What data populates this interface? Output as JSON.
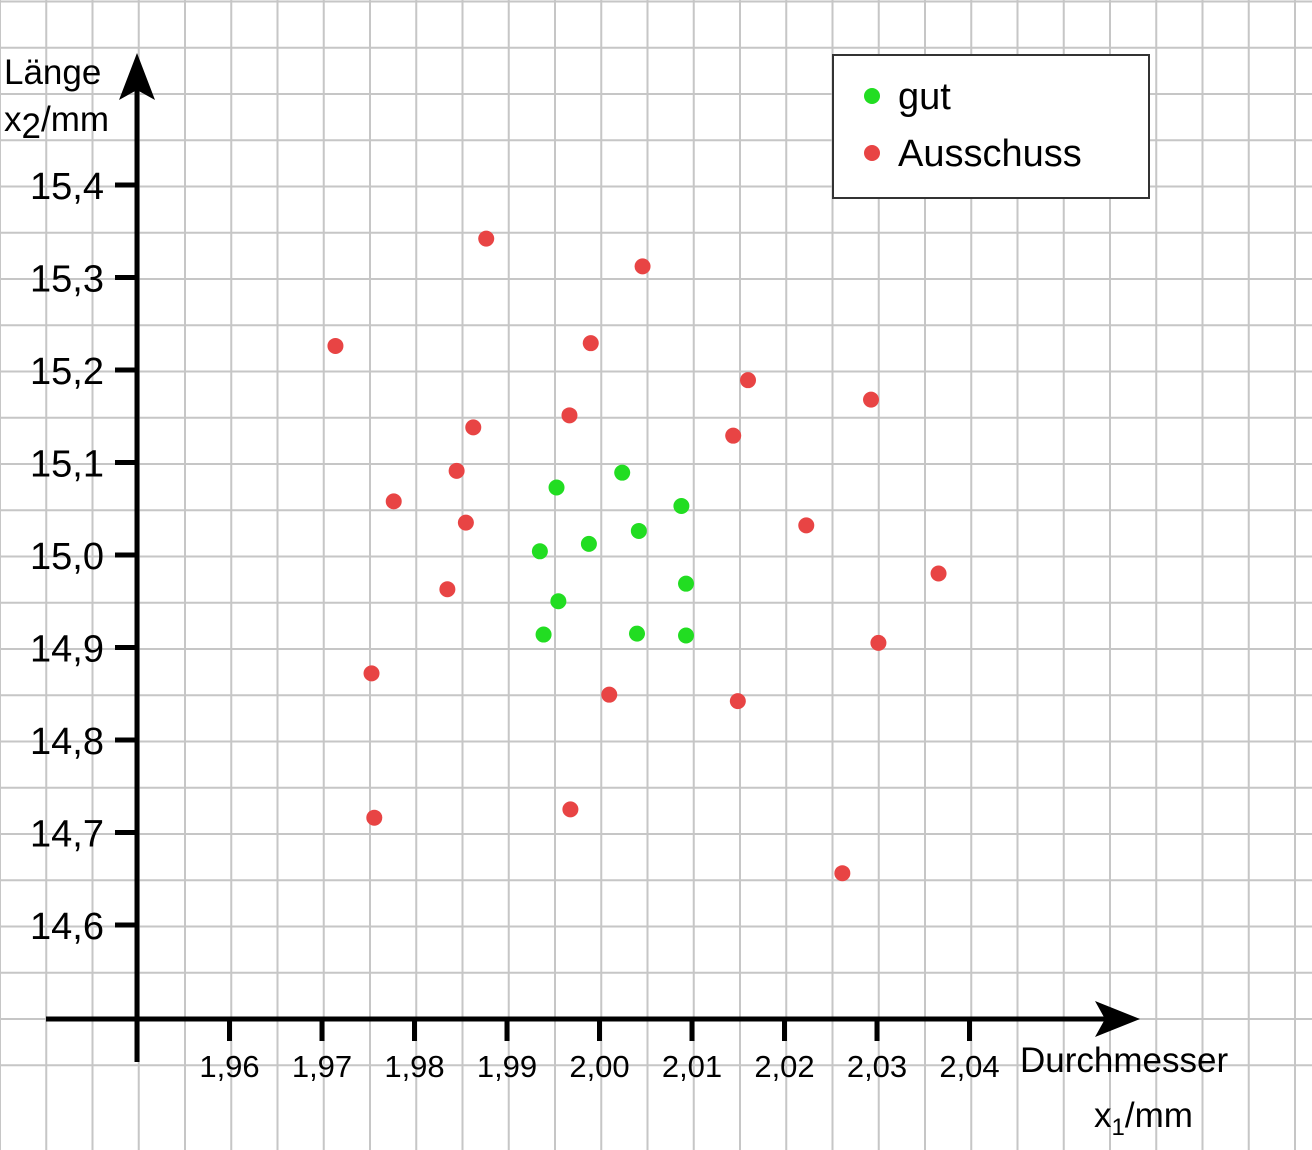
{
  "chart_data": {
    "type": "scatter",
    "xlabel": {
      "main": "Durchmesser",
      "var": "x",
      "sub": "1",
      "unit": "/mm"
    },
    "ylabel": {
      "main": "Länge",
      "var": "x",
      "sub": "2",
      "unit": "/mm"
    },
    "x_ticks": [
      "1,96",
      "1,97",
      "1,98",
      "1,99",
      "2,00",
      "2,01",
      "2,02",
      "2,03",
      "2,04"
    ],
    "y_ticks": [
      "14,6",
      "14,7",
      "14,8",
      "14,9",
      "15,0",
      "15,1",
      "15,2",
      "15,3",
      "15,4"
    ],
    "grid": true,
    "legend_position": "top-right",
    "series": [
      {
        "name": "gut",
        "color": "#22dd22",
        "points": [
          [
            1.9953,
            15.073
          ],
          [
            2.0024,
            15.089
          ],
          [
            2.0088,
            15.053
          ],
          [
            1.9935,
            15.004
          ],
          [
            1.9988,
            15.012
          ],
          [
            2.0042,
            15.026
          ],
          [
            1.9955,
            14.95
          ],
          [
            2.0093,
            14.969
          ],
          [
            1.9939,
            14.914
          ],
          [
            2.004,
            14.915
          ],
          [
            2.0093,
            14.913
          ]
        ]
      },
      {
        "name": "Ausschuss",
        "color": "#e84444",
        "points": [
          [
            1.9877,
            15.342
          ],
          [
            2.0046,
            15.312
          ],
          [
            1.9714,
            15.226
          ],
          [
            1.999,
            15.229
          ],
          [
            2.016,
            15.189
          ],
          [
            2.0293,
            15.168
          ],
          [
            1.9967,
            15.151
          ],
          [
            1.9863,
            15.138
          ],
          [
            2.0144,
            15.129
          ],
          [
            1.9845,
            15.091
          ],
          [
            1.9777,
            15.058
          ],
          [
            1.9855,
            15.035
          ],
          [
            2.0223,
            15.032
          ],
          [
            2.0366,
            14.98
          ],
          [
            1.9835,
            14.963
          ],
          [
            2.0301,
            14.905
          ],
          [
            1.9753,
            14.872
          ],
          [
            2.001,
            14.849
          ],
          [
            2.0149,
            14.842
          ],
          [
            1.9968,
            14.725
          ],
          [
            1.9756,
            14.716
          ],
          [
            2.0262,
            14.656
          ]
        ]
      }
    ]
  }
}
